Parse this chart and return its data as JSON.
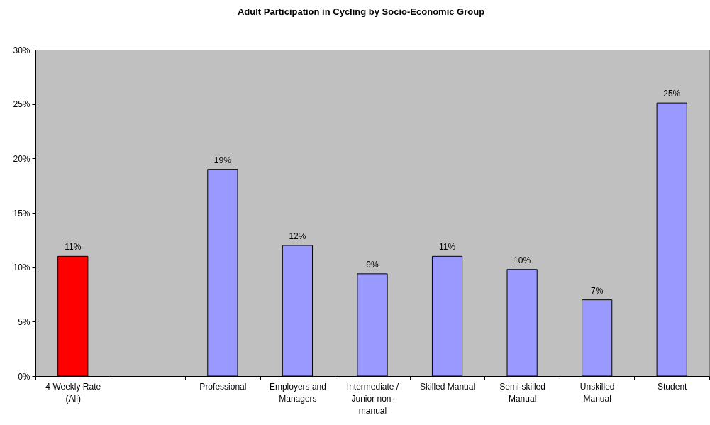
{
  "chart_data": {
    "type": "bar",
    "title": "Adult Participation in Cycling by Socio-Economic Group",
    "categories": [
      "4 Weekly Rate (All)",
      null,
      "Professional",
      "Employers and Managers",
      "Intermediate / Junior non-manual",
      "Skilled Manual",
      "Semi-skilled Manual",
      "Unskilled Manual",
      "Student"
    ],
    "values": [
      11,
      null,
      19,
      12,
      9.4,
      11,
      9.8,
      7,
      25.1
    ],
    "colors": [
      "#ff0000",
      null,
      "#9999ff",
      "#9999ff",
      "#9999ff",
      "#9999ff",
      "#9999ff",
      "#9999ff",
      "#9999ff"
    ],
    "value_labels": [
      "11%",
      null,
      "19%",
      "12%",
      "9%",
      "11%",
      "10%",
      "7%",
      "25%"
    ],
    "ylim": [
      0,
      30
    ],
    "yticks": [
      {
        "value": 0,
        "label": "0%"
      },
      {
        "value": 5,
        "label": "5%"
      },
      {
        "value": 10,
        "label": "10%"
      },
      {
        "value": 15,
        "label": "15%"
      },
      {
        "value": 20,
        "label": "20%"
      },
      {
        "value": 25,
        "label": "25%"
      },
      {
        "value": 30,
        "label": "30%"
      }
    ],
    "grid": false
  }
}
